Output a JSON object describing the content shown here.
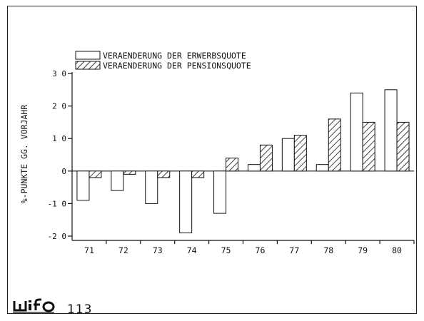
{
  "footer": {
    "logo_text": "wifo",
    "page_number": "113"
  },
  "colors": {
    "ink": "#111111",
    "background": "#ffffff"
  },
  "chart_data": {
    "type": "bar",
    "title": "",
    "xlabel": "",
    "ylabel": "%-PUNKTE GG. VORJAHR",
    "categories": [
      "71",
      "72",
      "73",
      "74",
      "75",
      "76",
      "77",
      "78",
      "79",
      "80"
    ],
    "ylim": [
      -2.0,
      3.0
    ],
    "yticks": [
      -2.0,
      -1.0,
      0,
      1.0,
      2.0,
      3.0
    ],
    "ytick_labels": [
      "-2 0",
      "-1 0",
      "0",
      "1 0",
      "2 0",
      "3 0"
    ],
    "grid": false,
    "legend_position": "top-left",
    "series": [
      {
        "name": "VERAENDERUNG DER ERWERBSQUOTE",
        "pattern": "empty",
        "values": [
          -0.9,
          -0.6,
          -1.0,
          -1.9,
          -1.3,
          0.2,
          1.0,
          0.2,
          2.4,
          2.5
        ]
      },
      {
        "name": "VERAENDERUNG DER PENSIONSQUOTE",
        "pattern": "hatched",
        "values": [
          -0.2,
          -0.1,
          -0.2,
          -0.2,
          0.4,
          0.8,
          1.1,
          1.6,
          1.5,
          1.5
        ]
      }
    ]
  }
}
